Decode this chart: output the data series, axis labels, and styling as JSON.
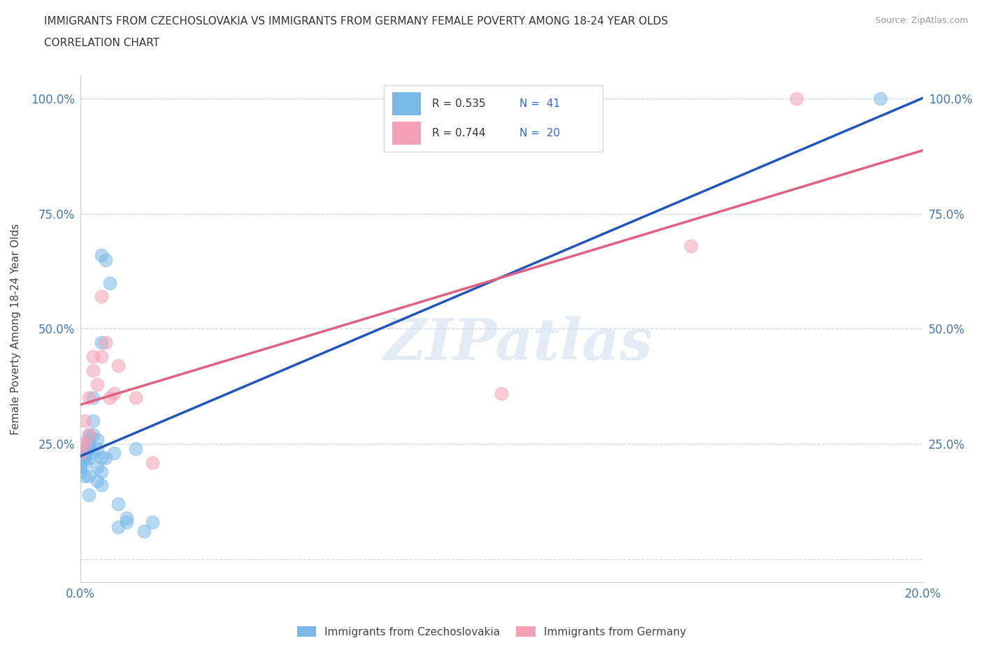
{
  "title_line1": "IMMIGRANTS FROM CZECHOSLOVAKIA VS IMMIGRANTS FROM GERMANY FEMALE POVERTY AMONG 18-24 YEAR OLDS",
  "title_line2": "CORRELATION CHART",
  "source": "Source: ZipAtlas.com",
  "ylabel": "Female Poverty Among 18-24 Year Olds",
  "watermark": "ZIPatlas",
  "legend_r1": "R = 0.535",
  "legend_n1": "N =  41",
  "legend_r2": "R = 0.744",
  "legend_n2": "N =  20",
  "color_czech": "#7ab8e8",
  "color_germany": "#f4a0b5",
  "color_czech_line": "#2255bb",
  "color_germany_line": "#e06080",
  "background": "#ffffff",
  "grid_color": "#c8d8e8",
  "czech_x": [
    0.0,
    0.0,
    0.0,
    0.001,
    0.001,
    0.001,
    0.001,
    0.001,
    0.001,
    0.002,
    0.002,
    0.002,
    0.002,
    0.002,
    0.002,
    0.002,
    0.003,
    0.003,
    0.003,
    0.003,
    0.004,
    0.004,
    0.004,
    0.004,
    0.005,
    0.005,
    0.005,
    0.005,
    0.005,
    0.006,
    0.006,
    0.007,
    0.008,
    0.009,
    0.009,
    0.011,
    0.011,
    0.013,
    0.015,
    0.017,
    0.19
  ],
  "czech_y": [
    0.19,
    0.2,
    0.21,
    0.18,
    0.21,
    0.22,
    0.22,
    0.23,
    0.24,
    0.14,
    0.18,
    0.22,
    0.24,
    0.25,
    0.26,
    0.27,
    0.23,
    0.27,
    0.3,
    0.35,
    0.17,
    0.2,
    0.24,
    0.26,
    0.16,
    0.19,
    0.22,
    0.47,
    0.66,
    0.22,
    0.65,
    0.6,
    0.23,
    0.07,
    0.12,
    0.08,
    0.09,
    0.24,
    0.06,
    0.08,
    1.0
  ],
  "germany_x": [
    0.0,
    0.0,
    0.001,
    0.001,
    0.002,
    0.002,
    0.003,
    0.003,
    0.004,
    0.005,
    0.005,
    0.006,
    0.007,
    0.008,
    0.009,
    0.013,
    0.017,
    0.1,
    0.145,
    0.17
  ],
  "germany_y": [
    0.23,
    0.25,
    0.25,
    0.3,
    0.27,
    0.35,
    0.41,
    0.44,
    0.38,
    0.44,
    0.57,
    0.47,
    0.35,
    0.36,
    0.42,
    0.35,
    0.21,
    0.36,
    0.68,
    1.0
  ],
  "xlim": [
    0,
    0.2
  ],
  "ylim": [
    -0.05,
    1.05
  ],
  "xticks": [
    0.0,
    0.05,
    0.1,
    0.15,
    0.2
  ],
  "xtick_labels": [
    "0.0%",
    "",
    "",
    "",
    "20.0%"
  ],
  "yticks": [
    0.0,
    0.25,
    0.5,
    0.75,
    1.0
  ],
  "ytick_labels": [
    "",
    "25.0%",
    "50.0%",
    "75.0%",
    "100.0%"
  ]
}
